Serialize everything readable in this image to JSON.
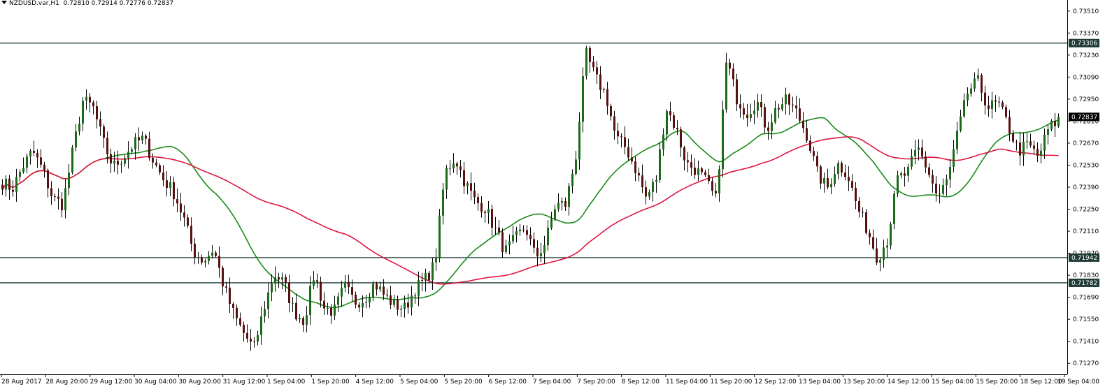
{
  "chart_header": {
    "symbol": "NZDUSD.var,H1",
    "open": "0.72810",
    "high": "0.72914",
    "low": "0.72776",
    "close": "0.72837"
  },
  "colors": {
    "background": "#ffffff",
    "bull_candle": "#1a6b1a",
    "bear_candle": "#5a0f10",
    "wick": "#000000",
    "ma_fast": "#1a8a1a",
    "ma_slow": "#e0163f",
    "hline": "#1e3b36",
    "axis": "#000000",
    "price_tag_bg": "#1e3b36",
    "price_tag_text": "#ffffff"
  },
  "chart_data": {
    "type": "candlestick",
    "ylim": [
      0.712,
      0.7358
    ],
    "y_ticks": [
      "0.73510",
      "0.73370",
      "0.73230",
      "0.73090",
      "0.72950",
      "0.72810",
      "0.72670",
      "0.72530",
      "0.72390",
      "0.72250",
      "0.72110",
      "0.71970",
      "0.71830",
      "0.71690",
      "0.71550",
      "0.71410",
      "0.71270"
    ],
    "x_ticks": [
      "28 Aug 2017",
      "28 Aug 20:00",
      "29 Aug 12:00",
      "30 Aug 04:00",
      "30 Aug 20:00",
      "31 Aug 12:00",
      "1 Sep 04:00",
      "1 Sep 20:00",
      "4 Sep 12:00",
      "5 Sep 04:00",
      "5 Sep 20:00",
      "6 Sep 12:00",
      "7 Sep 04:00",
      "7 Sep 20:00",
      "8 Sep 12:00",
      "11 Sep 04:00",
      "11 Sep 20:00",
      "12 Sep 12:00",
      "13 Sep 04:00",
      "13 Sep 20:00",
      "14 Sep 12:00",
      "15 Sep 04:00",
      "15 Sep 20:00",
      "18 Sep 12:00",
      "19 Sep 04:00"
    ],
    "horizontal_lines": [
      {
        "price": 0.73306,
        "label": "0.73306"
      },
      {
        "price": 0.71942,
        "label": "0.71942"
      },
      {
        "price": 0.71782,
        "label": "0.71782"
      }
    ],
    "current_price": {
      "price": 0.72837,
      "label": "0.72837"
    },
    "close_anchors": [
      0.7242,
      0.7238,
      0.7252,
      0.7262,
      0.725,
      0.7232,
      0.7228,
      0.7262,
      0.7294,
      0.729,
      0.7268,
      0.7252,
      0.7258,
      0.7266,
      0.727,
      0.7256,
      0.7244,
      0.7236,
      0.722,
      0.7198,
      0.7192,
      0.72,
      0.7176,
      0.7158,
      0.7146,
      0.7136,
      0.7162,
      0.7184,
      0.7178,
      0.716,
      0.7154,
      0.7184,
      0.7162,
      0.716,
      0.7176,
      0.7166,
      0.7168,
      0.7178,
      0.717,
      0.7164,
      0.7162,
      0.7174,
      0.718,
      0.719,
      0.7248,
      0.7258,
      0.7242,
      0.723,
      0.7226,
      0.7212,
      0.7198,
      0.7206,
      0.7214,
      0.7194,
      0.7204,
      0.7228,
      0.7228,
      0.7258,
      0.7324,
      0.7308,
      0.7298,
      0.727,
      0.7264,
      0.725,
      0.7232,
      0.7244,
      0.729,
      0.7276,
      0.7254,
      0.725,
      0.7242,
      0.723,
      0.732,
      0.7296,
      0.7286,
      0.7294,
      0.7276,
      0.729,
      0.7294,
      0.7286,
      0.7272,
      0.7248,
      0.7238,
      0.7254,
      0.7248,
      0.7226,
      0.7212,
      0.7194,
      0.7206,
      0.7244,
      0.7248,
      0.7264,
      0.725,
      0.7232,
      0.7244,
      0.7274,
      0.73,
      0.7306,
      0.729,
      0.7292,
      0.7278,
      0.7262,
      0.7266,
      0.7258,
      0.7276,
      0.7282
    ],
    "indicators": [
      {
        "type": "moving_average",
        "color": "#1a8a1a"
      },
      {
        "type": "moving_average",
        "color": "#e0163f"
      }
    ],
    "grid": false
  }
}
